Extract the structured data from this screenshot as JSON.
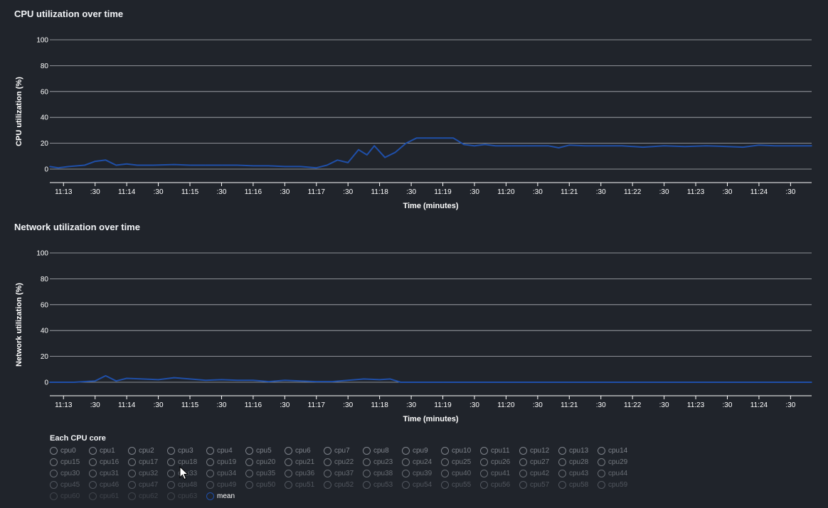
{
  "colors": {
    "background": "#20242b",
    "series": "#1f4fa8",
    "grid": "#c9ccd1",
    "text": "#ffffff"
  },
  "chart_data": [
    {
      "type": "line",
      "title": "CPU utilization over time",
      "xlabel": "Time (minutes)",
      "ylabel": "CPU utilization (%)",
      "ylim": [
        0,
        100
      ],
      "yticks": [
        "0",
        "20",
        "40",
        "60",
        "80",
        "100"
      ],
      "xticks": [
        "11:13",
        ":30",
        "11:14",
        ":30",
        "11:15",
        ":30",
        "11:16",
        ":30",
        "11:17",
        ":30",
        "11:18",
        ":30",
        "11:19",
        ":30",
        "11:20",
        ":30",
        "11:21",
        ":30",
        "11:22",
        ":30",
        "11:23",
        ":30",
        "11:24",
        ":30"
      ],
      "grid": true,
      "series": [
        {
          "name": "mean",
          "points": [
            [
              "11:12:47",
              2
            ],
            [
              "11:12:55",
              1
            ],
            [
              "11:13:05",
              2
            ],
            [
              "11:13:20",
              3
            ],
            [
              "11:13:30",
              6
            ],
            [
              "11:13:40",
              7
            ],
            [
              "11:13:50",
              3
            ],
            [
              "11:14:00",
              4
            ],
            [
              "11:14:10",
              3
            ],
            [
              "11:14:25",
              3
            ],
            [
              "11:14:45",
              3.5
            ],
            [
              "11:15:00",
              3
            ],
            [
              "11:15:15",
              3
            ],
            [
              "11:15:30",
              3
            ],
            [
              "11:15:45",
              3
            ],
            [
              "11:16:00",
              2.5
            ],
            [
              "11:16:15",
              2.5
            ],
            [
              "11:16:30",
              2
            ],
            [
              "11:16:45",
              2
            ],
            [
              "11:17:00",
              1
            ],
            [
              "11:17:10",
              3
            ],
            [
              "11:17:20",
              7
            ],
            [
              "11:17:30",
              5
            ],
            [
              "11:17:40",
              15
            ],
            [
              "11:17:48",
              11
            ],
            [
              "11:17:55",
              18
            ],
            [
              "11:18:05",
              9
            ],
            [
              "11:18:15",
              13
            ],
            [
              "11:18:25",
              20
            ],
            [
              "11:18:35",
              24
            ],
            [
              "11:18:45",
              24
            ],
            [
              "11:19:00",
              24
            ],
            [
              "11:19:10",
              24
            ],
            [
              "11:19:20",
              19
            ],
            [
              "11:19:30",
              18
            ],
            [
              "11:19:40",
              19
            ],
            [
              "11:19:50",
              18
            ],
            [
              "11:20:05",
              18
            ],
            [
              "11:20:20",
              18
            ],
            [
              "11:20:40",
              18
            ],
            [
              "11:20:50",
              16.5
            ],
            [
              "11:21:00",
              18.5
            ],
            [
              "11:21:15",
              18
            ],
            [
              "11:21:30",
              18
            ],
            [
              "11:21:50",
              18
            ],
            [
              "11:22:10",
              17
            ],
            [
              "11:22:30",
              18
            ],
            [
              "11:22:50",
              17.5
            ],
            [
              "11:23:10",
              18
            ],
            [
              "11:23:30",
              17.5
            ],
            [
              "11:23:45",
              17
            ],
            [
              "11:24:00",
              18.5
            ],
            [
              "11:24:15",
              18
            ],
            [
              "11:24:30",
              18
            ],
            [
              "11:24:50",
              18
            ]
          ]
        }
      ]
    },
    {
      "type": "line",
      "title": "Network utilization over time",
      "xlabel": "Time (minutes)",
      "ylabel": "Network utilization (%)",
      "ylim": [
        0,
        100
      ],
      "yticks": [
        "0",
        "20",
        "40",
        "60",
        "80",
        "100"
      ],
      "xticks": [
        "11:13",
        ":30",
        "11:14",
        ":30",
        "11:15",
        ":30",
        "11:16",
        ":30",
        "11:17",
        ":30",
        "11:18",
        ":30",
        "11:19",
        ":30",
        "11:20",
        ":30",
        "11:21",
        ":30",
        "11:22",
        ":30",
        "11:23",
        ":30",
        "11:24",
        ":30"
      ],
      "grid": true,
      "series": [
        {
          "name": "mean",
          "points": [
            [
              "11:12:47",
              0
            ],
            [
              "11:13:10",
              0
            ],
            [
              "11:13:30",
              1
            ],
            [
              "11:13:40",
              5
            ],
            [
              "11:13:50",
              1
            ],
            [
              "11:14:00",
              3
            ],
            [
              "11:14:15",
              2.5
            ],
            [
              "11:14:30",
              2
            ],
            [
              "11:14:45",
              3.5
            ],
            [
              "11:15:00",
              2.5
            ],
            [
              "11:15:15",
              1.5
            ],
            [
              "11:15:30",
              2
            ],
            [
              "11:15:45",
              1.5
            ],
            [
              "11:16:00",
              1.5
            ],
            [
              "11:16:15",
              0.5
            ],
            [
              "11:16:30",
              1.5
            ],
            [
              "11:16:45",
              1
            ],
            [
              "11:17:00",
              0.5
            ],
            [
              "11:17:15",
              0.5
            ],
            [
              "11:17:30",
              1.5
            ],
            [
              "11:17:45",
              2.5
            ],
            [
              "11:18:00",
              2
            ],
            [
              "11:18:10",
              2.5
            ],
            [
              "11:18:20",
              0
            ],
            [
              "11:19:00",
              0
            ],
            [
              "11:20:00",
              0
            ],
            [
              "11:21:00",
              0
            ],
            [
              "11:22:00",
              0
            ],
            [
              "11:23:00",
              0
            ],
            [
              "11:24:00",
              0
            ],
            [
              "11:24:50",
              0
            ]
          ]
        }
      ]
    }
  ],
  "legend": {
    "title": "Each CPU core",
    "items": [
      "cpu0",
      "cpu1",
      "cpu2",
      "cpu3",
      "cpu4",
      "cpu5",
      "cpu6",
      "cpu7",
      "cpu8",
      "cpu9",
      "cpu10",
      "cpu11",
      "cpu12",
      "cpu13",
      "cpu14",
      "cpu15",
      "cpu16",
      "cpu17",
      "cpu18",
      "cpu19",
      "cpu20",
      "cpu21",
      "cpu22",
      "cpu23",
      "cpu24",
      "cpu25",
      "cpu26",
      "cpu27",
      "cpu28",
      "cpu29",
      "cpu30",
      "cpu31",
      "cpu32",
      "cpu33",
      "cpu34",
      "cpu35",
      "cpu36",
      "cpu37",
      "cpu38",
      "cpu39",
      "cpu40",
      "cpu41",
      "cpu42",
      "cpu43",
      "cpu44",
      "cpu45",
      "cpu46",
      "cpu47",
      "cpu48",
      "cpu49",
      "cpu50",
      "cpu51",
      "cpu52",
      "cpu53",
      "cpu54",
      "cpu55",
      "cpu56",
      "cpu57",
      "cpu58",
      "cpu59",
      "cpu60",
      "cpu61",
      "cpu62",
      "cpu63",
      "mean"
    ]
  }
}
